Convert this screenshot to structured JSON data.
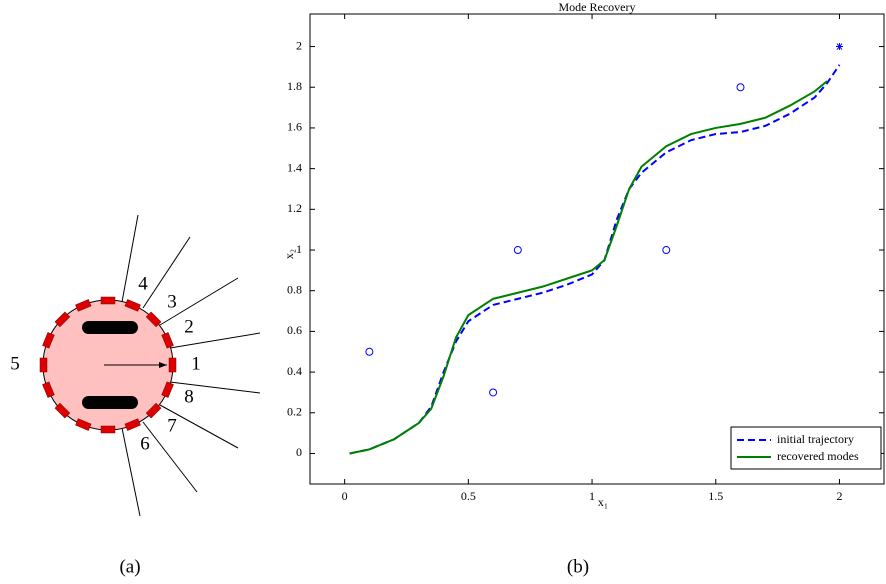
{
  "diagram": {
    "sensor_labels": [
      "1",
      "2",
      "3",
      "4",
      "5",
      "6",
      "7",
      "8"
    ],
    "panel_label": "(a)"
  },
  "chart_data": {
    "type": "line",
    "title": "Mode Recovery",
    "xlabel": "x₁",
    "ylabel": "x₂",
    "panel_label": "(b)",
    "x": [
      0.02,
      0.1,
      0.2,
      0.3,
      0.35,
      0.4,
      0.45,
      0.5,
      0.6,
      0.7,
      0.8,
      0.9,
      1.0,
      1.05,
      1.1,
      1.15,
      1.2,
      1.3,
      1.4,
      1.5,
      1.6,
      1.7,
      1.8,
      1.9,
      1.95,
      2.0
    ],
    "series": [
      {
        "name": "initial trajectory",
        "color": "#0000ff",
        "dash": true,
        "values": [
          0,
          0.02,
          0.07,
          0.15,
          0.23,
          0.4,
          0.55,
          0.65,
          0.73,
          0.76,
          0.79,
          0.83,
          0.88,
          0.95,
          1.15,
          1.3,
          1.38,
          1.48,
          1.54,
          1.57,
          1.58,
          1.61,
          1.67,
          1.75,
          1.82,
          1.91
        ]
      },
      {
        "name": "recovered modes",
        "color": "#008000",
        "dash": false,
        "values": [
          0,
          0.02,
          0.07,
          0.15,
          0.22,
          0.38,
          0.57,
          0.68,
          0.76,
          0.79,
          0.82,
          0.86,
          0.9,
          0.95,
          1.12,
          1.3,
          1.41,
          1.51,
          1.57,
          1.6,
          1.62,
          1.65,
          1.71,
          1.78,
          1.83,
          null
        ]
      }
    ],
    "markers": [
      {
        "marker": "circle",
        "color": "#0000ff",
        "x": [
          0.1,
          0.6,
          0.7,
          1.3,
          1.6
        ],
        "y": [
          0.5,
          0.3,
          1.0,
          1.0,
          1.8
        ]
      },
      {
        "marker": "star",
        "color": "#0000ff",
        "x": [
          2
        ],
        "y": [
          2
        ]
      }
    ],
    "xlim": [
      -0.14,
      2.18
    ],
    "ylim": [
      -0.15,
      2.16
    ],
    "xticks": [
      0,
      0.5,
      1,
      1.5,
      2
    ],
    "yticks": [
      0,
      0.2,
      0.4,
      0.6,
      0.8,
      1,
      1.2,
      1.4,
      1.6,
      1.8,
      2
    ],
    "legend": "lower right"
  }
}
